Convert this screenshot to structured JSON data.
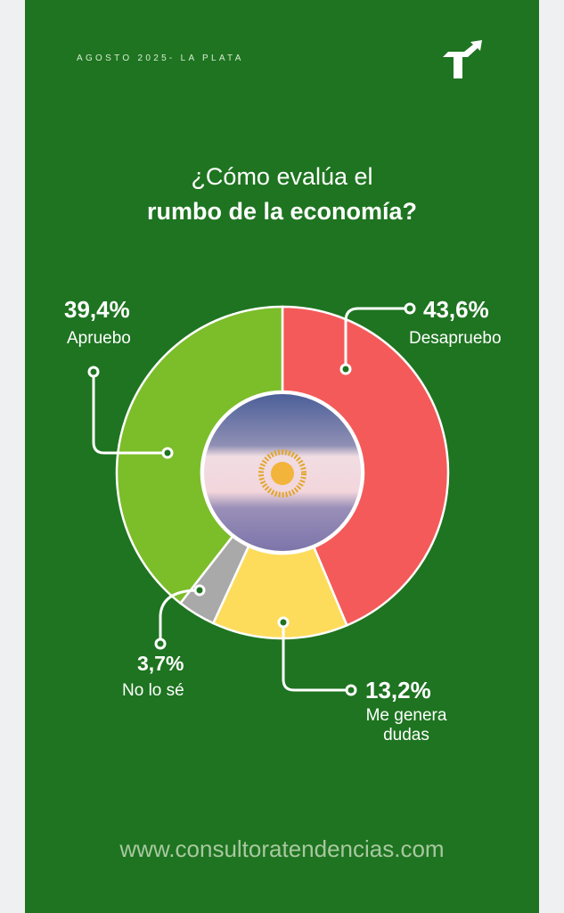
{
  "header": {
    "date_location": "AGOSTO 2025- LA PLATA",
    "logo": "Tendencias T arrow logo"
  },
  "title": {
    "line1": "¿Cómo evalúa el",
    "line2": "rumbo de la economía?"
  },
  "footer": {
    "url": "www.consultoratendencias.com"
  },
  "chart_data": {
    "type": "pie",
    "subtype": "donut",
    "title": "¿Cómo evalúa el rumbo de la economía?",
    "slices": [
      {
        "label": "Desapruebo",
        "value": 43.6,
        "display": "43,6%",
        "color": "#f45a5a"
      },
      {
        "label": "Me genera dudas",
        "value": 13.2,
        "display": "13,2%",
        "color": "#fddc5c"
      },
      {
        "label": "No lo sé",
        "value": 3.7,
        "display": "3,7%",
        "color": "#a9a9a9"
      },
      {
        "label": "Apruebo",
        "value": 39.4,
        "display": "39,4%",
        "color": "#7cbd2a"
      }
    ]
  }
}
